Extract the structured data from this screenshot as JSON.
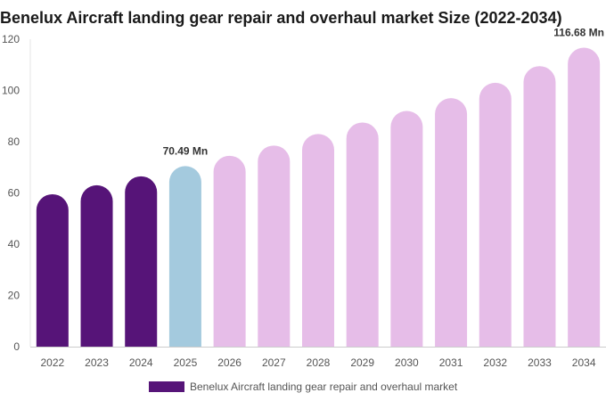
{
  "chart_data": {
    "type": "bar",
    "title": "Benelux Aircraft landing gear repair and overhaul market Size (2022-2034)",
    "xlabel": "",
    "ylabel": "",
    "categories": [
      "2022",
      "2023",
      "2024",
      "2025",
      "2026",
      "2027",
      "2028",
      "2029",
      "2030",
      "2031",
      "2032",
      "2033",
      "2034"
    ],
    "series": [
      {
        "name": "Benelux Aircraft landing gear repair and overhaul market",
        "values": [
          59.5,
          63,
          66.5,
          70.49,
          74.5,
          78.5,
          83,
          87.5,
          92,
          97,
          103,
          109.5,
          116.68
        ]
      }
    ],
    "bar_colors": [
      "#561478",
      "#561478",
      "#561478",
      "#a4cade",
      "#e6bde8",
      "#e6bde8",
      "#e6bde8",
      "#e6bde8",
      "#e6bde8",
      "#e6bde8",
      "#e6bde8",
      "#e6bde8",
      "#e6bde8"
    ],
    "legend_color": "#561478",
    "data_labels": [
      {
        "index": 3,
        "text": "70.49 Mn"
      },
      {
        "index": 12,
        "text": "116.68 Mn"
      }
    ],
    "yticks": [
      0,
      20,
      40,
      60,
      80,
      100,
      120
    ],
    "ylim": [
      0,
      120
    ],
    "grid": false,
    "legend_position": "bottom"
  }
}
